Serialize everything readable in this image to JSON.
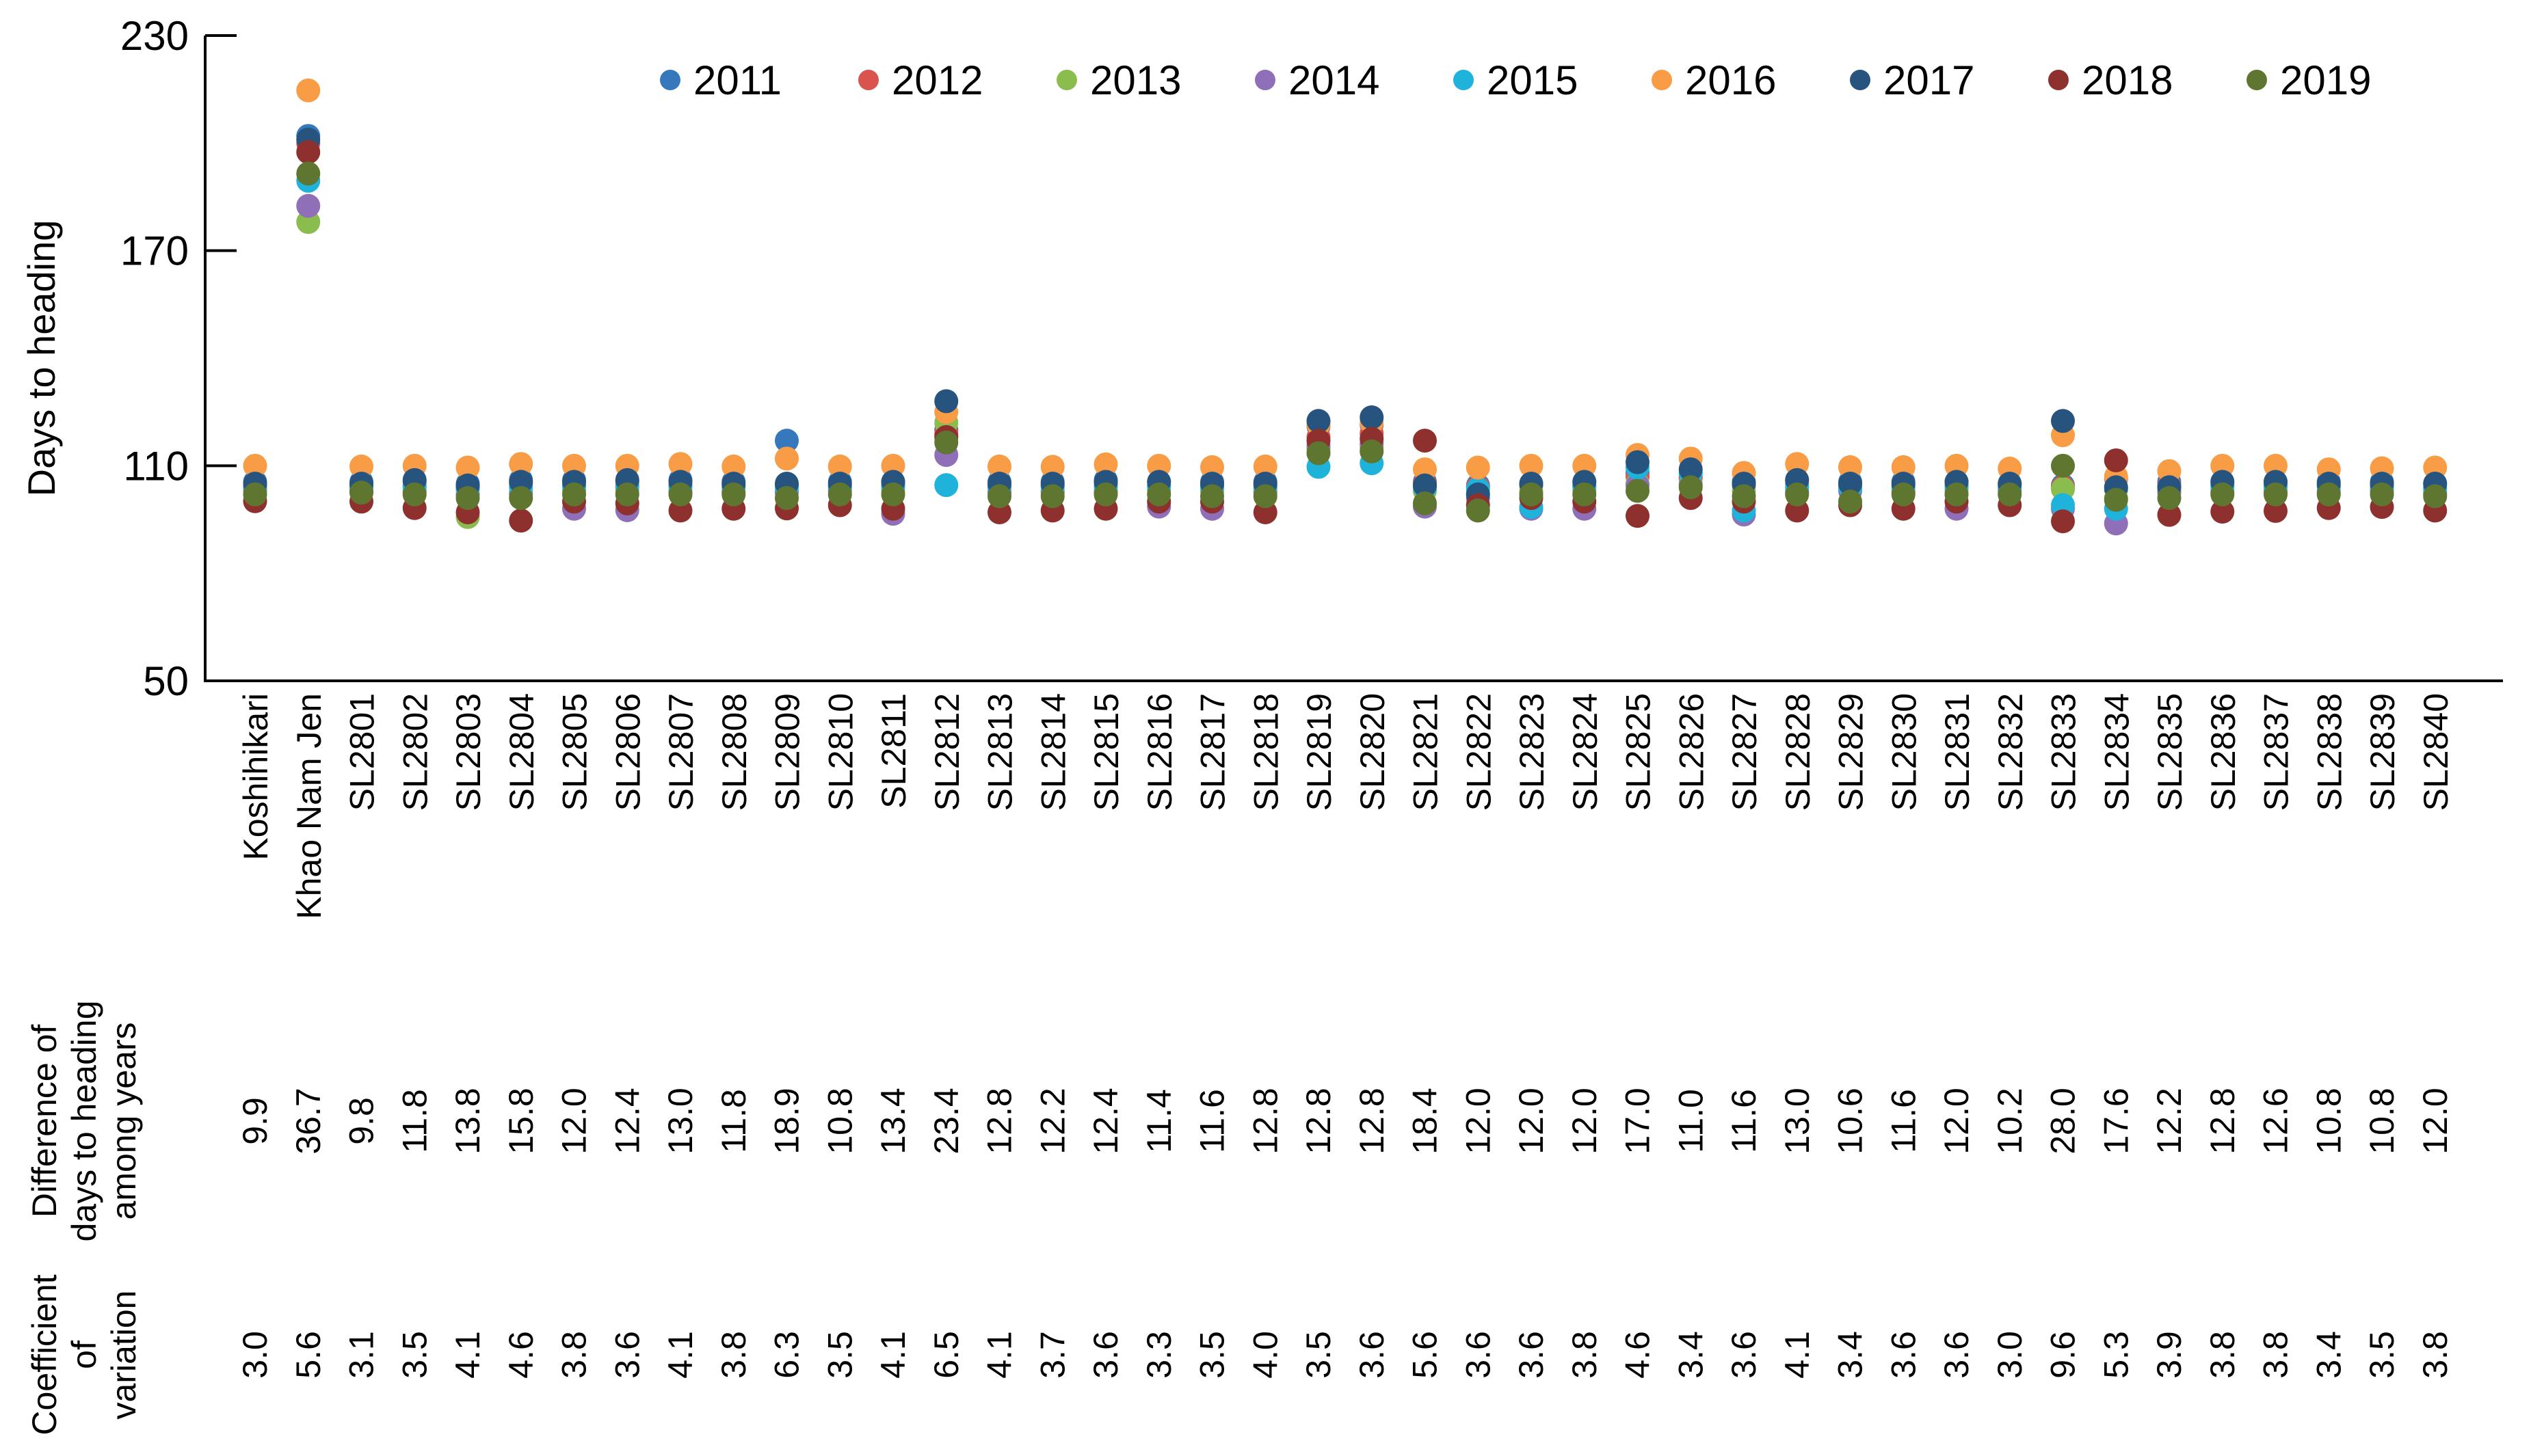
{
  "chart_data": {
    "type": "scatter",
    "title": "",
    "xlabel": "",
    "ylabel": "Days to heading",
    "ylim": [
      50,
      230
    ],
    "yticks": [
      50,
      110,
      170,
      230
    ],
    "grid": false,
    "legend_position": "top-inside",
    "series": [
      {
        "name": "2011",
        "color": "#3579BC"
      },
      {
        "name": "2012",
        "color": "#D9534F"
      },
      {
        "name": "2013",
        "color": "#8ABD4E"
      },
      {
        "name": "2014",
        "color": "#8E6FB8"
      },
      {
        "name": "2015",
        "color": "#1FB3DC"
      },
      {
        "name": "2016",
        "color": "#F89C45"
      },
      {
        "name": "2017",
        "color": "#27537F"
      },
      {
        "name": "2018",
        "color": "#8E312E"
      },
      {
        "name": "2019",
        "color": "#5F7630"
      }
    ],
    "rows": {
      "difference_label_lines": [
        "Difference of",
        "days to heading",
        "among years"
      ],
      "cv_label_lines": [
        "Coefficient",
        "of",
        "variation"
      ]
    },
    "categories": [
      {
        "name": "Koshihikari",
        "days": [
          105.5,
          104.5,
          103,
          103.5,
          104,
          110,
          105,
          100.1,
          102
        ],
        "diff": "9.9",
        "cv": "3.0"
      },
      {
        "name": "Khao Nam Jen",
        "days": [
          202,
          200,
          178,
          182.5,
          189.5,
          214.7,
          201,
          197.5,
          191.5
        ],
        "diff": "36.7",
        "cv": "5.6"
      },
      {
        "name": "SL2801",
        "days": [
          105.5,
          104.5,
          103.5,
          103,
          104,
          109.8,
          105,
          100,
          102.5
        ],
        "diff": "9.8",
        "cv": "3.1"
      },
      {
        "name": "SL2802",
        "days": [
          105.5,
          104.5,
          103,
          102.5,
          104,
          110,
          106,
          98.2,
          102
        ],
        "diff": "11.8",
        "cv": "3.5"
      },
      {
        "name": "SL2803",
        "days": [
          105,
          104,
          95.7,
          102,
          103.5,
          109.5,
          104.5,
          97,
          101
        ],
        "diff": "13.8",
        "cv": "4.1"
      },
      {
        "name": "SL2804",
        "days": [
          106,
          105,
          102.5,
          102,
          104,
          110.5,
          105.5,
          94.7,
          101
        ],
        "diff": "15.8",
        "cv": "4.6"
      },
      {
        "name": "SL2805",
        "days": [
          106,
          104.5,
          103,
          98,
          104,
          110,
          105.5,
          100,
          102
        ],
        "diff": "12.0",
        "cv": "3.8"
      },
      {
        "name": "SL2806",
        "days": [
          105.5,
          104.5,
          103,
          97.6,
          104,
          110,
          106,
          99.5,
          102
        ],
        "diff": "12.4",
        "cv": "3.6"
      },
      {
        "name": "SL2807",
        "days": [
          106,
          104.5,
          103,
          102.5,
          104,
          110.5,
          105.5,
          97.5,
          102
        ],
        "diff": "13.0",
        "cv": "4.1"
      },
      {
        "name": "SL2808",
        "days": [
          105.5,
          104.5,
          103,
          102.5,
          104,
          109.8,
          105,
          98,
          102
        ],
        "diff": "11.8",
        "cv": "3.8"
      },
      {
        "name": "SL2809",
        "days": [
          117,
          104.5,
          103,
          102.5,
          104,
          112,
          105,
          98.1,
          101
        ],
        "diff": "18.9",
        "cv": "6.3"
      },
      {
        "name": "SL2810",
        "days": [
          105.5,
          104.5,
          103.5,
          103,
          104,
          109.8,
          105,
          99,
          102
        ],
        "diff": "10.8",
        "cv": "3.5"
      },
      {
        "name": "SL2811",
        "days": [
          105.5,
          104.5,
          103,
          96.6,
          104,
          110,
          105.5,
          98,
          102
        ],
        "diff": "13.4",
        "cv": "4.1"
      },
      {
        "name": "SL2812",
        "days": [
          120,
          119,
          122,
          113,
          104.6,
          125,
          128,
          118,
          116.5
        ],
        "diff": "23.4",
        "cv": "6.5"
      },
      {
        "name": "SL2813",
        "days": [
          105.5,
          104.5,
          103,
          102.5,
          104,
          109.8,
          105,
          97,
          101.5
        ],
        "diff": "12.8",
        "cv": "4.1"
      },
      {
        "name": "SL2814",
        "days": [
          105.5,
          104.5,
          103,
          102.5,
          104,
          109.7,
          105,
          97.5,
          101.5
        ],
        "diff": "12.2",
        "cv": "3.7"
      },
      {
        "name": "SL2815",
        "days": [
          106,
          105,
          103,
          102.5,
          104,
          110.4,
          105.5,
          98,
          102
        ],
        "diff": "12.4",
        "cv": "3.6"
      },
      {
        "name": "SL2816",
        "days": [
          105.5,
          104.5,
          103,
          98.6,
          104,
          110,
          105.5,
          100,
          102
        ],
        "diff": "11.4",
        "cv": "3.3"
      },
      {
        "name": "SL2817",
        "days": [
          105.5,
          104.5,
          103,
          98,
          104,
          109.6,
          105,
          100,
          101.5
        ],
        "diff": "11.6",
        "cv": "3.5"
      },
      {
        "name": "SL2818",
        "days": [
          105.5,
          104.5,
          103,
          102.5,
          104,
          109.8,
          105,
          97,
          101.5
        ],
        "diff": "12.8",
        "cv": "4.0"
      },
      {
        "name": "SL2819",
        "days": [
          121,
          118,
          114.5,
          115.5,
          109.7,
          121.5,
          122.5,
          117,
          113.5
        ],
        "diff": "12.8",
        "cv": "3.5"
      },
      {
        "name": "SL2820",
        "days": [
          121.5,
          119,
          115,
          116,
          110.7,
          122,
          123.5,
          117.5,
          114
        ],
        "diff": "12.8",
        "cv": "3.6"
      },
      {
        "name": "SL2821",
        "days": [
          105.5,
          105,
          103,
          98.6,
          104,
          109,
          104.5,
          117,
          99.5
        ],
        "diff": "18.4",
        "cv": "5.6"
      },
      {
        "name": "SL2822",
        "days": [
          104.5,
          104,
          102,
          101,
          103.5,
          109.5,
          102,
          99,
          97.5
        ],
        "diff": "12.0",
        "cv": "3.6"
      },
      {
        "name": "SL2823",
        "days": [
          105,
          104.5,
          103,
          98,
          98.5,
          110,
          105,
          101,
          102
        ],
        "diff": "12.0",
        "cv": "3.6"
      },
      {
        "name": "SL2824",
        "days": [
          105.5,
          104.5,
          103,
          98,
          104,
          110,
          105.5,
          100,
          102
        ],
        "diff": "12.0",
        "cv": "3.8"
      },
      {
        "name": "SL2825",
        "days": [
          108,
          107,
          105,
          104.5,
          109.5,
          113,
          111,
          96,
          103
        ],
        "diff": "17.0",
        "cv": "4.6"
      },
      {
        "name": "SL2826",
        "days": [
          107,
          106.5,
          105,
          104.5,
          108,
          112,
          109,
          101,
          104
        ],
        "diff": "11.0",
        "cv": "3.4"
      },
      {
        "name": "SL2827",
        "days": [
          105.5,
          104.5,
          103,
          96.4,
          97.5,
          108,
          105,
          100,
          101.5
        ],
        "diff": "11.6",
        "cv": "3.6"
      },
      {
        "name": "SL2828",
        "days": [
          106,
          105,
          103,
          102.5,
          104,
          110.5,
          106,
          97.5,
          102
        ],
        "diff": "13.0",
        "cv": "4.1"
      },
      {
        "name": "SL2829",
        "days": [
          105.5,
          104.5,
          103.5,
          103,
          104,
          109.6,
          105,
          99,
          100
        ],
        "diff": "10.6",
        "cv": "3.4"
      },
      {
        "name": "SL2830",
        "days": [
          105.5,
          104.5,
          103,
          102.5,
          104,
          109.6,
          105,
          98,
          102
        ],
        "diff": "11.6",
        "cv": "3.6"
      },
      {
        "name": "SL2831",
        "days": [
          105.5,
          104.5,
          103,
          98,
          104,
          110,
          105.5,
          100,
          102
        ],
        "diff": "12.0",
        "cv": "3.6"
      },
      {
        "name": "SL2832",
        "days": [
          105,
          104.5,
          103.5,
          103,
          104,
          109.2,
          105,
          99,
          102
        ],
        "diff": "10.2",
        "cv": "3.0"
      },
      {
        "name": "SL2833",
        "days": [
          104.5,
          104,
          103.5,
          98,
          99,
          118.5,
          122.5,
          94.5,
          110
        ],
        "diff": "28.0",
        "cv": "9.6"
      },
      {
        "name": "SL2834",
        "days": [
          103.5,
          106.5,
          101,
          93.9,
          98,
          107,
          104,
          111.5,
          100.5
        ],
        "diff": "17.6",
        "cv": "5.3"
      },
      {
        "name": "SL2835",
        "days": [
          105.5,
          104.5,
          103,
          102.5,
          104,
          108.5,
          104,
          96.3,
          101
        ],
        "diff": "12.2",
        "cv": "3.9"
      },
      {
        "name": "SL2836",
        "days": [
          105.5,
          104.5,
          103,
          102.5,
          104,
          110,
          105.5,
          97.2,
          102
        ],
        "diff": "12.8",
        "cv": "3.8"
      },
      {
        "name": "SL2837",
        "days": [
          105.5,
          104.5,
          103,
          102.5,
          104,
          110,
          105.5,
          97.4,
          102
        ],
        "diff": "12.6",
        "cv": "3.8"
      },
      {
        "name": "SL2838",
        "days": [
          105.5,
          104.5,
          103,
          102.5,
          104,
          109,
          105,
          98.2,
          102
        ],
        "diff": "10.8",
        "cv": "3.4"
      },
      {
        "name": "SL2839",
        "days": [
          105.5,
          104.5,
          103.5,
          103,
          104,
          109.3,
          105,
          98.5,
          102
        ],
        "diff": "10.8",
        "cv": "3.5"
      },
      {
        "name": "SL2840",
        "days": [
          105,
          104,
          102.5,
          102,
          103.5,
          109.5,
          105,
          97.5,
          101.5
        ],
        "diff": "12.0",
        "cv": "3.8"
      }
    ]
  }
}
